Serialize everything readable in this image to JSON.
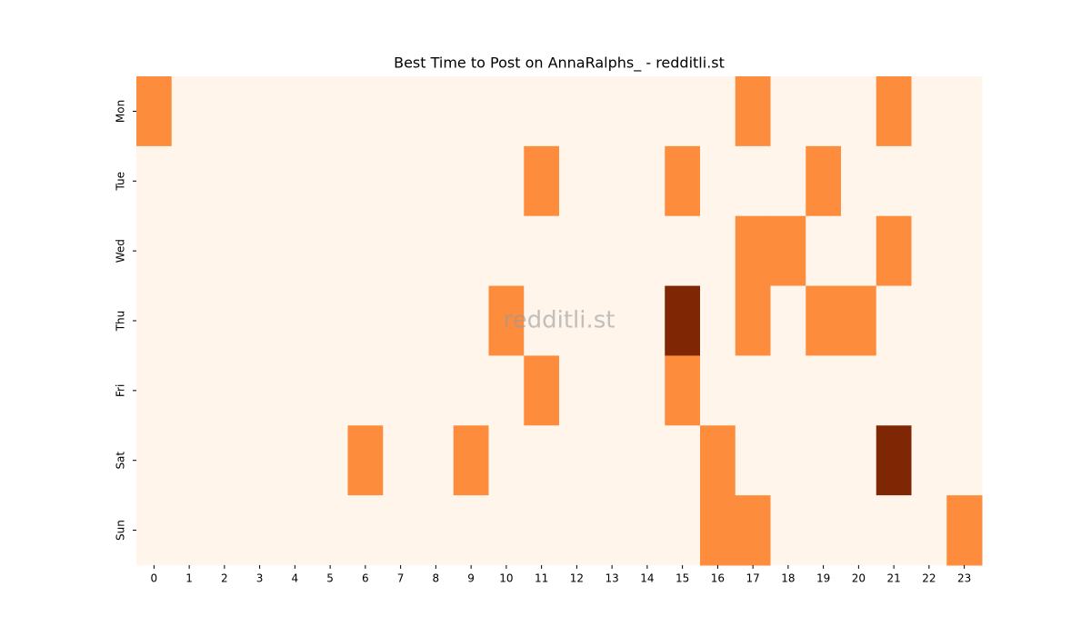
{
  "chart_data": {
    "type": "heatmap",
    "title": "Best Time to Post on AnnaRalphs_ - redditli.st",
    "watermark": "redditli.st",
    "x": [
      "0",
      "1",
      "2",
      "3",
      "4",
      "5",
      "6",
      "7",
      "8",
      "9",
      "10",
      "11",
      "12",
      "13",
      "14",
      "15",
      "16",
      "17",
      "18",
      "19",
      "20",
      "21",
      "22",
      "23"
    ],
    "y": [
      "Mon",
      "Tue",
      "Wed",
      "Thu",
      "Fri",
      "Sat",
      "Sun"
    ],
    "values": [
      [
        1,
        0,
        0,
        0,
        0,
        0,
        0,
        0,
        0,
        0,
        0,
        0,
        0,
        0,
        0,
        0,
        0,
        1,
        0,
        0,
        0,
        1,
        0,
        0
      ],
      [
        0,
        0,
        0,
        0,
        0,
        0,
        0,
        0,
        0,
        0,
        0,
        1,
        0,
        0,
        0,
        1,
        0,
        0,
        0,
        1,
        0,
        0,
        0,
        0
      ],
      [
        0,
        0,
        0,
        0,
        0,
        0,
        0,
        0,
        0,
        0,
        0,
        0,
        0,
        0,
        0,
        0,
        0,
        1,
        1,
        0,
        0,
        1,
        0,
        0
      ],
      [
        0,
        0,
        0,
        0,
        0,
        0,
        0,
        0,
        0,
        0,
        1,
        0,
        0,
        0,
        0,
        2,
        0,
        1,
        0,
        1,
        1,
        0,
        0,
        0
      ],
      [
        0,
        0,
        0,
        0,
        0,
        0,
        0,
        0,
        0,
        0,
        0,
        1,
        0,
        0,
        0,
        1,
        0,
        0,
        0,
        0,
        0,
        0,
        0,
        0
      ],
      [
        0,
        0,
        0,
        0,
        0,
        0,
        1,
        0,
        0,
        1,
        0,
        0,
        0,
        0,
        0,
        0,
        1,
        0,
        0,
        0,
        0,
        2,
        0,
        0
      ],
      [
        0,
        0,
        0,
        0,
        0,
        0,
        0,
        0,
        0,
        0,
        0,
        0,
        0,
        0,
        0,
        0,
        1,
        1,
        0,
        0,
        0,
        0,
        0,
        1
      ]
    ],
    "zlim": [
      0,
      2
    ],
    "colors": [
      "#fff5eb",
      "#fd8d3c",
      "#7f2704"
    ]
  }
}
